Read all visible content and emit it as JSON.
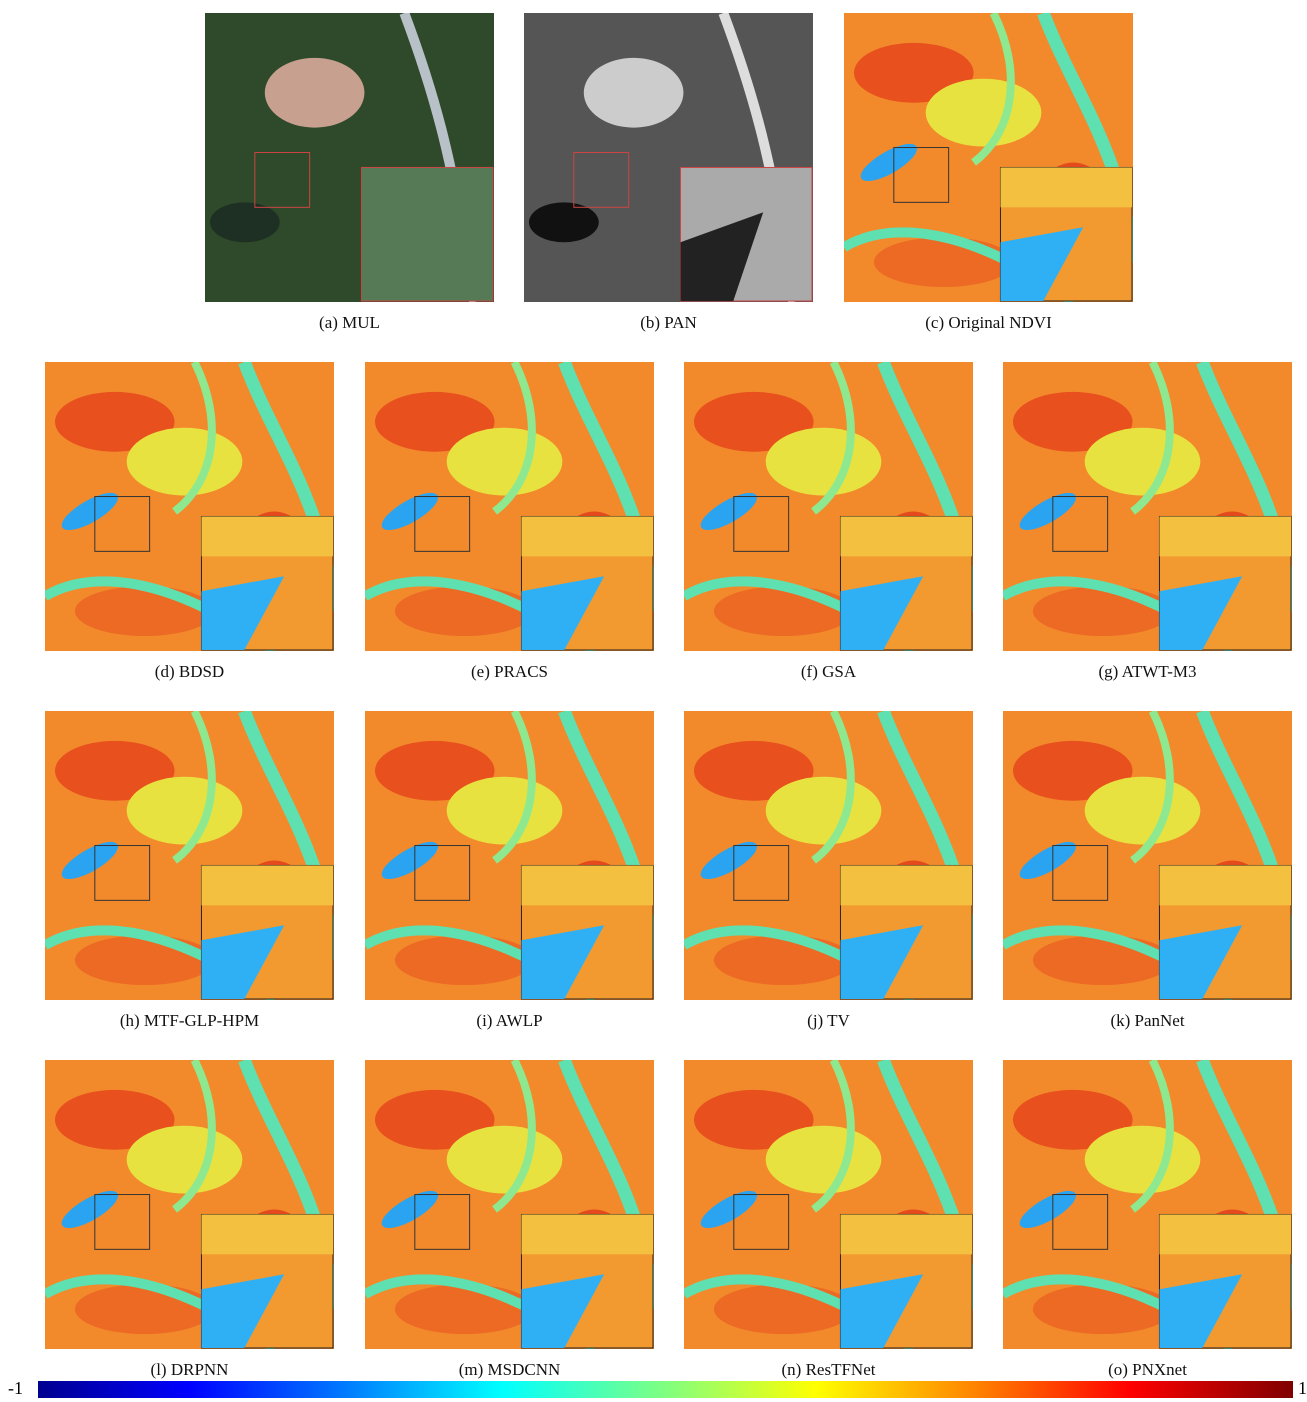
{
  "panels": [
    {
      "caption": "(a) MUL"
    },
    {
      "caption": "(b) PAN"
    },
    {
      "caption": "(c) Original NDVI"
    },
    {
      "caption": "(d) BDSD"
    },
    {
      "caption": "(e) PRACS"
    },
    {
      "caption": "(f) GSA"
    },
    {
      "caption": "(g) ATWT-M3"
    },
    {
      "caption": "(h) MTF-GLP-HPM"
    },
    {
      "caption": "(i) AWLP"
    },
    {
      "caption": "(j) TV"
    },
    {
      "caption": "(k) PanNet"
    },
    {
      "caption": "(l) DRPNN"
    },
    {
      "caption": "(m) MSDCNN"
    },
    {
      "caption": "(n) ResTFNet"
    },
    {
      "caption": "(o) PNXnet"
    }
  ],
  "colorbar": {
    "min_label": "-1",
    "max_label": "1"
  }
}
